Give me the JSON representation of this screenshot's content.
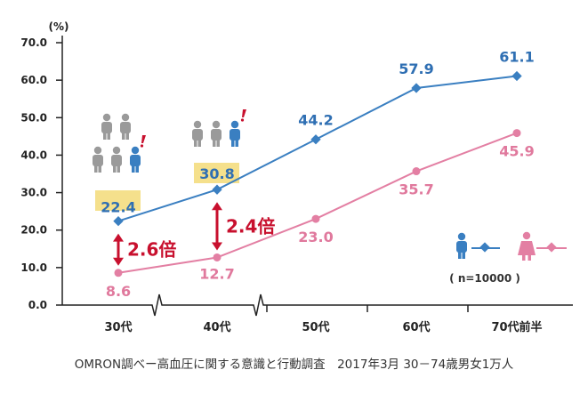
{
  "chart_data": {
    "type": "line",
    "unit": "(%)",
    "categories": [
      "30代",
      "40代",
      "50代",
      "60代",
      "70代前半"
    ],
    "ylim": [
      0,
      70
    ],
    "yticks": [
      "0.0",
      "10.0",
      "20.0",
      "30.0",
      "40.0",
      "50.0",
      "60.0",
      "70.0"
    ],
    "series": [
      {
        "values": [
          22.4,
          30.8,
          44.2,
          57.9,
          61.1
        ],
        "labels": [
          "22.4",
          "30.8",
          "44.2",
          "57.9",
          "61.1"
        ],
        "color": "#3a7fc1"
      },
      {
        "values": [
          8.6,
          12.7,
          23.0,
          35.7,
          45.9
        ],
        "labels": [
          "8.6",
          "12.7",
          "23.0",
          "35.7",
          "45.9"
        ],
        "color": "#e37fa3"
      }
    ],
    "annotations": [
      {
        "category": "30代",
        "text": "2.6倍"
      },
      {
        "category": "40代",
        "text": "2.4倍"
      }
    ],
    "legend": {
      "placement": "right",
      "note": "( n=10000 )"
    },
    "grid": false,
    "highlight_color": "#f5e08c",
    "accent_color": "#c8102e",
    "icon_color": "#9a9a9a"
  },
  "source_text": "OMRON調べー高血圧に関する意識と行動調査　2017年3月 30－74歳男女1万人"
}
